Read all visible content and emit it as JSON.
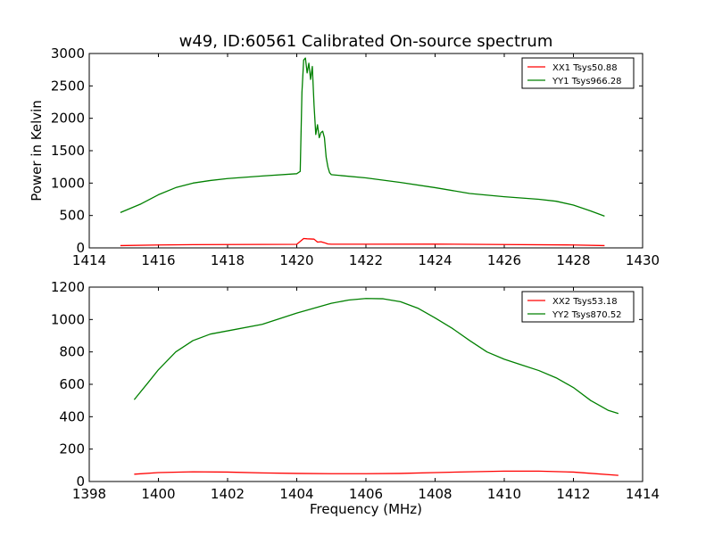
{
  "chart_data": [
    {
      "type": "line",
      "title": "w49, ID:60561 Calibrated On-source spectrum",
      "xlabel": "",
      "ylabel": "Power in Kelvin",
      "xlim": [
        1414,
        1430
      ],
      "ylim": [
        0,
        3000
      ],
      "xticks": [
        "1414",
        "1416",
        "1418",
        "1420",
        "1422",
        "1424",
        "1426",
        "1428",
        "1430"
      ],
      "yticks": [
        "0",
        "500",
        "1000",
        "1500",
        "2000",
        "2500",
        "3000"
      ],
      "grid": false,
      "legend_position": "top-right",
      "series": [
        {
          "name": "XX1 Tsys50.88",
          "color": "#ff0000",
          "x": [
            1414.9,
            1416,
            1417,
            1418,
            1419,
            1420,
            1420.2,
            1420.3,
            1420.5,
            1420.6,
            1420.7,
            1420.8,
            1420.9,
            1421,
            1422,
            1424,
            1426,
            1428,
            1428.9
          ],
          "y": [
            35,
            45,
            50,
            52,
            53,
            55,
            145,
            140,
            135,
            90,
            95,
            80,
            60,
            57,
            57,
            58,
            52,
            45,
            35
          ]
        },
        {
          "name": "YY1 Tsys966.28",
          "color": "#008000",
          "x": [
            1414.9,
            1415.5,
            1416,
            1416.5,
            1417,
            1417.5,
            1418,
            1419,
            1420,
            1420.1,
            1420.15,
            1420.2,
            1420.25,
            1420.3,
            1420.35,
            1420.4,
            1420.45,
            1420.5,
            1420.55,
            1420.6,
            1420.65,
            1420.7,
            1420.75,
            1420.8,
            1420.85,
            1420.9,
            1420.95,
            1421,
            1421.1,
            1422,
            1423,
            1424,
            1425,
            1426,
            1427,
            1427.5,
            1428,
            1428.5,
            1428.9
          ],
          "y": [
            545,
            680,
            820,
            930,
            1000,
            1040,
            1070,
            1110,
            1145,
            1180,
            2400,
            2900,
            2930,
            2700,
            2850,
            2600,
            2800,
            2200,
            1750,
            1900,
            1700,
            1780,
            1800,
            1700,
            1400,
            1250,
            1160,
            1130,
            1125,
            1080,
            1010,
            930,
            840,
            790,
            750,
            720,
            660,
            570,
            490
          ]
        }
      ]
    },
    {
      "type": "line",
      "title": "",
      "xlabel": "Frequency (MHz)",
      "ylabel": "",
      "xlim": [
        1398,
        1414
      ],
      "ylim": [
        0,
        1200
      ],
      "xticks": [
        "1398",
        "1400",
        "1402",
        "1404",
        "1406",
        "1408",
        "1410",
        "1412",
        "1414"
      ],
      "yticks": [
        "0",
        "200",
        "400",
        "600",
        "800",
        "1000",
        "1200"
      ],
      "grid": false,
      "legend_position": "top-right",
      "series": [
        {
          "name": "XX2 Tsys53.18",
          "color": "#ff0000",
          "x": [
            1399.3,
            1400,
            1401,
            1402,
            1403,
            1404,
            1405,
            1406,
            1407,
            1408,
            1409,
            1410,
            1411,
            1412,
            1413.3
          ],
          "y": [
            45,
            55,
            60,
            58,
            53,
            50,
            48,
            48,
            50,
            55,
            60,
            64,
            64,
            58,
            38
          ]
        },
        {
          "name": "YY2 Tsys870.52",
          "color": "#008000",
          "x": [
            1399.3,
            1399.7,
            1400,
            1400.5,
            1401,
            1401.5,
            1402,
            1403,
            1404,
            1405,
            1405.5,
            1406,
            1406.5,
            1407,
            1407.5,
            1408,
            1408.5,
            1409,
            1409.5,
            1410,
            1410.5,
            1411,
            1411.5,
            1412,
            1412.5,
            1413,
            1413.3
          ],
          "y": [
            505,
            610,
            690,
            800,
            870,
            910,
            930,
            970,
            1040,
            1100,
            1120,
            1130,
            1128,
            1110,
            1070,
            1010,
            945,
            870,
            800,
            755,
            720,
            685,
            640,
            580,
            500,
            440,
            420
          ]
        }
      ]
    }
  ]
}
